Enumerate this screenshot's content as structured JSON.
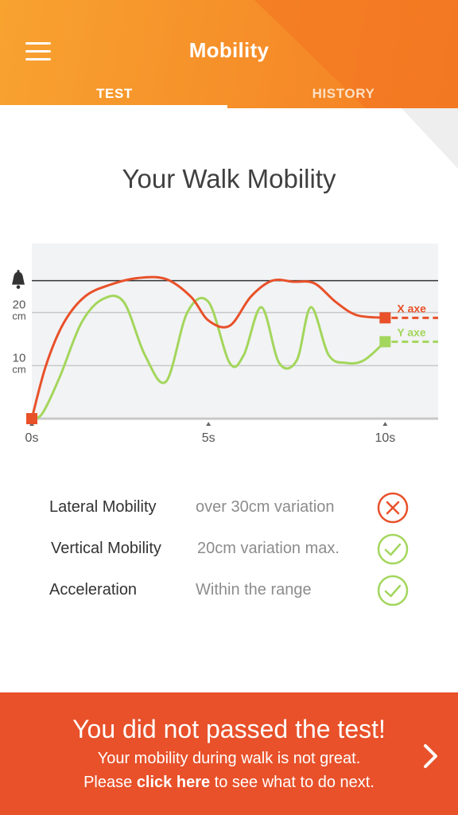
{
  "header": {
    "title": "Mobility",
    "menu_icon": "hamburger-menu-icon",
    "tabs": [
      {
        "label": "TEST",
        "active": true
      },
      {
        "label": "HISTORY",
        "active": false
      }
    ]
  },
  "main": {
    "heading": "Your Walk Mobility"
  },
  "chart_data": {
    "type": "line",
    "x_unit": "s",
    "y_unit": "cm",
    "xlim": [
      0,
      11.5
    ],
    "ylim": [
      0,
      33
    ],
    "x_ticks": [
      {
        "value": 0,
        "label": "0s"
      },
      {
        "value": 5,
        "label": "5s"
      },
      {
        "value": 10,
        "label": "10s"
      }
    ],
    "y_ticks": [
      {
        "value": 10,
        "label": "10",
        "unit": "cm"
      },
      {
        "value": 20,
        "label": "20",
        "unit": "cm"
      }
    ],
    "threshold": {
      "value": 26,
      "icon": "bell-icon"
    },
    "grid": true,
    "series": [
      {
        "name": "X axe",
        "color": "#e8512a",
        "x": [
          0,
          0.4,
          0.9,
          1.5,
          2.2,
          3.0,
          3.8,
          4.5,
          5.0,
          5.6,
          6.2,
          6.8,
          7.4,
          8.0,
          8.6,
          9.2,
          10.0
        ],
        "y": [
          0,
          10,
          18,
          23,
          25.2,
          26.5,
          26.3,
          23,
          18.5,
          17.5,
          23,
          26,
          25.8,
          25.5,
          22,
          19.5,
          19
        ]
      },
      {
        "name": "Y axe",
        "color": "#a3d65c",
        "x": [
          0,
          0.3,
          0.8,
          1.4,
          2.0,
          2.6,
          3.2,
          3.8,
          4.4,
          5.0,
          5.6,
          6.0,
          6.5,
          7.0,
          7.5,
          7.9,
          8.4,
          8.9,
          9.4,
          10.0
        ],
        "y": [
          0,
          1,
          8,
          18,
          22.5,
          22,
          12,
          7,
          20,
          22,
          10.5,
          12,
          21,
          10.5,
          11,
          21,
          12,
          10.5,
          11,
          14.5
        ]
      }
    ]
  },
  "results": [
    {
      "label": "Lateral Mobility",
      "value": "over 30cm variation",
      "status": "fail",
      "icon": "error-x-icon"
    },
    {
      "label": "Vertical Mobility",
      "value": "20cm variation max.",
      "status": "pass",
      "icon": "checkmark-icon"
    },
    {
      "label": "Acceleration",
      "value": "Within the range",
      "status": "pass",
      "icon": "checkmark-icon"
    }
  ],
  "banner": {
    "headline": "You did not passed the test!",
    "line1": "Your mobility during walk is not great.",
    "line2_prefix": "Please ",
    "line2_link": "click here",
    "line2_suffix": " to see what to do next.",
    "arrow_icon": "chevron-right-icon"
  },
  "colors": {
    "header_orange": "#f6922a",
    "fail_red": "#e8512a",
    "pass_green": "#a3d65c"
  }
}
